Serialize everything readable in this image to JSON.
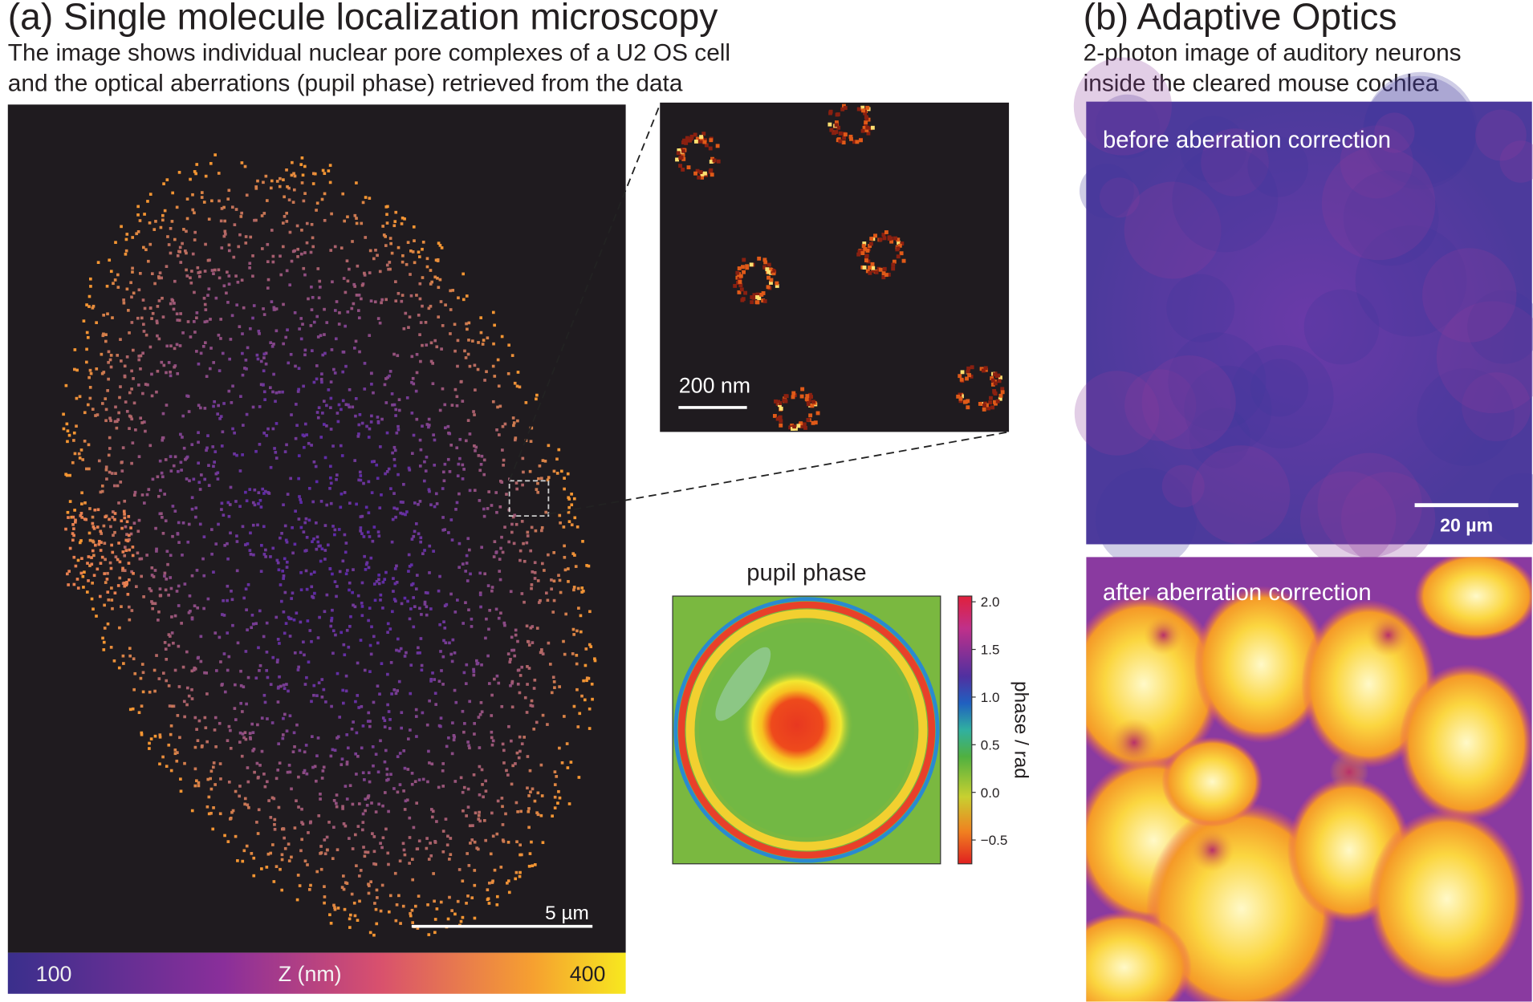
{
  "panel_a": {
    "title": "(a) Single molecule localization microscopy",
    "subtitle": [
      "The image shows individual nuclear pore complexes of a U2 OS cell",
      "and the optical aberrations (pupil phase) retrieved from the data"
    ],
    "scale_bar": "5 µm",
    "inset_scale_bar": "200 nm",
    "z_colorbar": {
      "label": "Z (nm)",
      "ticks": [
        100,
        400
      ]
    },
    "pupil_phase": {
      "title": "pupil phase",
      "colorbar_label": "phase / rad",
      "lim": [
        -0.75,
        2.06
      ],
      "ticks": [
        {
          "value": 2,
          "label": "2.0"
        },
        {
          "value": 1.5,
          "label": "1.5"
        },
        {
          "value": 1,
          "label": "1.0"
        },
        {
          "value": 0.5,
          "label": "0.5"
        },
        {
          "value": 0,
          "label": "0.0"
        },
        {
          "value": -0.5,
          "label": "−0.5"
        }
      ]
    }
  },
  "panel_b": {
    "title": "(b) Adaptive Optics",
    "subtitle": [
      "2-photon image of auditory neurons",
      "inside the cleared mouse cochlea"
    ],
    "before_label": "before aberration correction",
    "after_label": "after aberration correction",
    "scale_bar": "20 µm"
  }
}
